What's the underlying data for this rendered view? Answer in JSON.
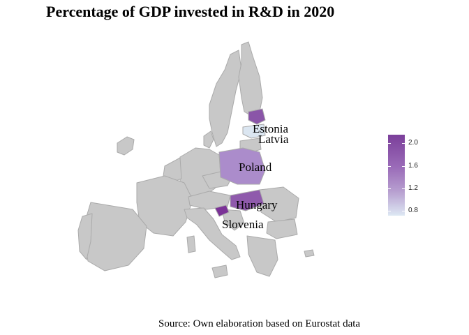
{
  "title": "Percentage of GDP invested in R&D in 2020",
  "source": "Source: Own elaboration based on Eurostat data",
  "colors": {
    "base_country": "#c8c8c8",
    "border": "#aaaaaa",
    "estonia": "#8a55a8",
    "latvia": "#dbe6f1",
    "poland": "#ab8ccb",
    "hungary": "#8f5aac",
    "slovenia": "#7b3297"
  },
  "labels": {
    "estonia": "Estonia",
    "latvia": "Latvia",
    "poland": "Poland",
    "hungary": "Hungary",
    "slovenia": "Slovenia"
  },
  "legend": {
    "ticks": [
      "2.0",
      "1.6",
      "1.2",
      "0.8"
    ]
  }
}
